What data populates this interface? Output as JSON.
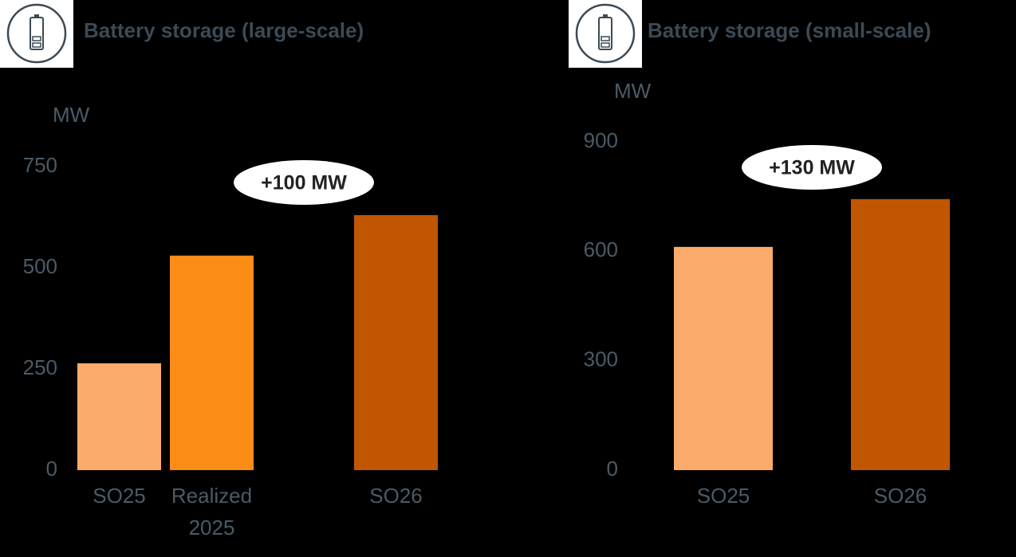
{
  "chart_data": [
    {
      "type": "bar",
      "title": "Battery storage (large-scale)",
      "y_label": "MW",
      "categories": [
        "SO25",
        "Realized 2025",
        "SO26"
      ],
      "values": [
        264,
        530,
        630
      ],
      "colors": [
        "#fdab6a",
        "#fb8c16",
        "#c05600"
      ],
      "ylim": [
        0,
        750
      ],
      "yticks": [
        0,
        250,
        500,
        750
      ],
      "annotation": "+100 MW"
    },
    {
      "type": "bar",
      "title": "Battery storage (small-scale)",
      "y_label": "MW",
      "categories": [
        "SO25",
        "SO26"
      ],
      "values": [
        612,
        743
      ],
      "colors": [
        "#fdab6a",
        "#c05600"
      ],
      "ylim": [
        0,
        900
      ],
      "yticks": [
        0,
        300,
        600,
        900
      ],
      "annotation": "+130 MW"
    }
  ]
}
